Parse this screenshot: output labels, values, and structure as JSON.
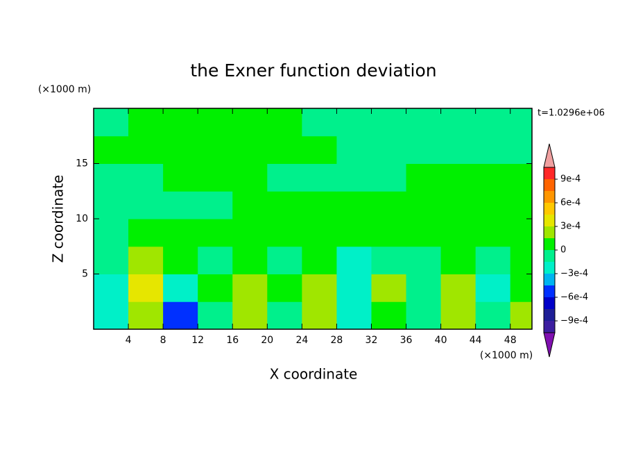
{
  "chart_data": {
    "type": "contour",
    "title": "the Exner function deviation",
    "time_label": "t=1.0296e+06",
    "xlabel": "X coordinate",
    "ylabel": "Z coordinate",
    "x_unit": "(×1000 m)",
    "y_unit": "(×1000 m)",
    "xlim": [
      0,
      50.5
    ],
    "ylim": [
      0,
      20
    ],
    "xticks": [
      4,
      8,
      12,
      16,
      20,
      24,
      28,
      32,
      36,
      40,
      44,
      48
    ],
    "yticks": [
      5,
      10,
      15
    ],
    "x": [
      2,
      6,
      10,
      14,
      18,
      22,
      26,
      30,
      34,
      38,
      42,
      46,
      50
    ],
    "y": [
      1.25,
      3.75,
      6.25,
      8.75,
      11.25,
      13.75,
      16.25,
      18.75
    ],
    "z": [
      [
        -0.0002,
        0.0002,
        -0.0005,
        -0.0001,
        0.0002,
        -5e-05,
        0.0002,
        -0.0002,
        5e-05,
        -5e-05,
        0.0002,
        -0.0001,
        0.0002
      ],
      [
        -0.0002,
        0.00035,
        -0.0002,
        5e-05,
        0.0002,
        5e-05,
        0.0002,
        -0.0002,
        0.0002,
        -5e-05,
        0.0002,
        -0.0002,
        5e-05
      ],
      [
        -5e-05,
        0.0002,
        5e-05,
        -5e-05,
        5e-05,
        -5e-05,
        5e-05,
        -0.0002,
        -5e-05,
        -5e-05,
        5e-05,
        -5e-05,
        5e-05
      ],
      [
        -5e-05,
        5e-05,
        5e-05,
        5e-05,
        5e-05,
        5e-05,
        5e-05,
        5e-05,
        5e-05,
        5e-05,
        5e-05,
        5e-05,
        5e-05
      ],
      [
        -5e-05,
        -5e-05,
        -5e-05,
        -5e-05,
        5e-05,
        5e-05,
        5e-05,
        5e-05,
        5e-05,
        5e-05,
        5e-05,
        5e-05,
        5e-05
      ],
      [
        -5e-05,
        -5e-05,
        5e-05,
        5e-05,
        5e-05,
        -5e-05,
        -5e-05,
        -5e-05,
        -5e-05,
        5e-05,
        5e-05,
        5e-05,
        5e-05
      ],
      [
        5e-05,
        5e-05,
        5e-05,
        5e-05,
        5e-05,
        5e-05,
        5e-05,
        -5e-05,
        -5e-05,
        -5e-05,
        -5e-05,
        -5e-05,
        -5e-05
      ],
      [
        -5e-05,
        5e-05,
        5e-05,
        5e-05,
        5e-05,
        5e-05,
        -5e-05,
        -5e-05,
        -5e-05,
        -5e-05,
        -5e-05,
        -5e-05,
        -5e-05
      ]
    ],
    "levels": [
      -0.00105,
      -0.0009,
      -0.00075,
      -0.0006,
      -0.00045,
      -0.0003,
      -0.00015,
      0,
      0.00015,
      0.0003,
      0.00045,
      0.0006,
      0.00075,
      0.0009,
      0.00105
    ],
    "colors": [
      "#8010b0",
      "#3c1ea0",
      "#1e1e96",
      "#0000c8",
      "#0030ff",
      "#00b4f0",
      "#00f0c8",
      "#00f08c",
      "#00f000",
      "#a0e600",
      "#e6e600",
      "#ffc800",
      "#ff9600",
      "#ff6400",
      "#ff2828",
      "#f0a0a0"
    ],
    "cticks": [
      {
        "value": 0.0009,
        "label": "9e-4"
      },
      {
        "value": 0.0006,
        "label": "6e-4"
      },
      {
        "value": 0.0003,
        "label": "3e-4"
      },
      0,
      {
        "value": -0.0003,
        "label": "−3e-4"
      },
      {
        "value": -0.0006,
        "label": "−6e-4"
      },
      {
        "value": -0.0009,
        "label": "−9e-4"
      }
    ]
  }
}
